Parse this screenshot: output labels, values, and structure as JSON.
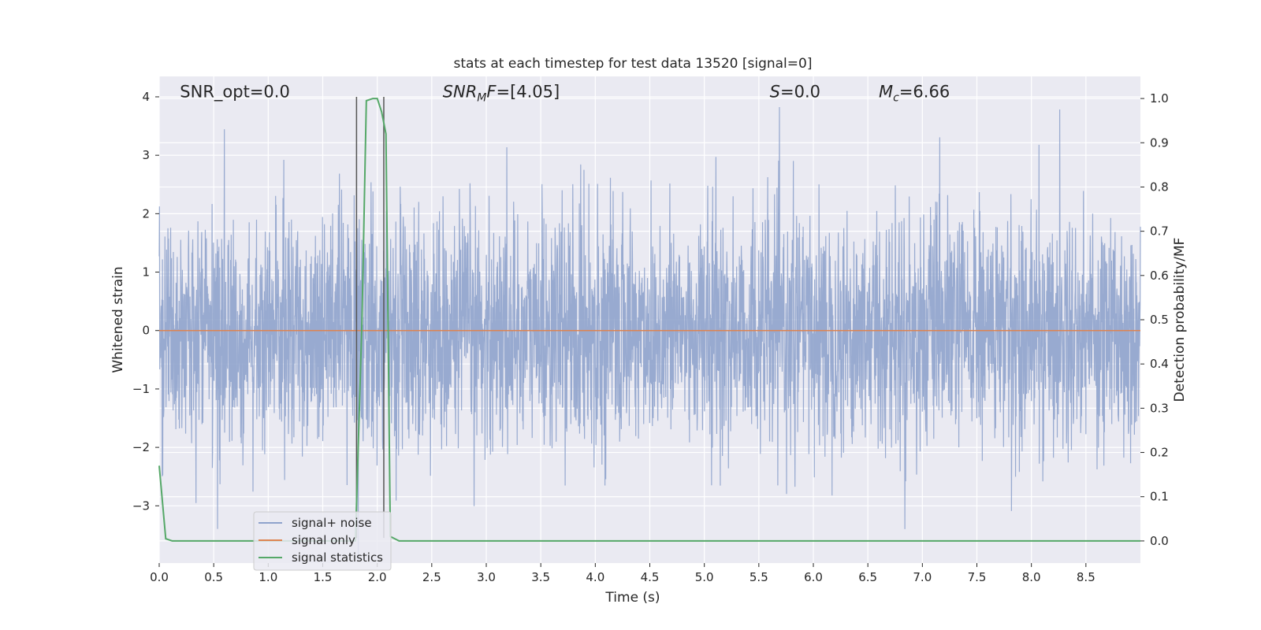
{
  "chart_data": {
    "type": "line",
    "title": "stats at each timestep for test data 13520 [signal=0]",
    "xlabel": "Time (s)",
    "ylabel": "Whitened strain",
    "y2label": "Detection probability/MF",
    "xlim": [
      0.0,
      9.0
    ],
    "ylim": [
      -3.98,
      4.35
    ],
    "y2lim": [
      -0.05,
      1.05
    ],
    "x_ticks": [
      0.0,
      0.5,
      1.0,
      1.5,
      2.0,
      2.5,
      3.0,
      3.5,
      4.0,
      4.5,
      5.0,
      5.5,
      6.0,
      6.5,
      7.0,
      7.5,
      8.0,
      8.5
    ],
    "x_tick_labels": [
      "0.0",
      "0.5",
      "1.0",
      "1.5",
      "2.0",
      "2.5",
      "3.0",
      "3.5",
      "4.0",
      "4.5",
      "5.0",
      "5.5",
      "6.0",
      "6.5",
      "7.0",
      "7.5",
      "8.0",
      "8.5"
    ],
    "y_ticks": [
      4,
      3,
      2,
      1,
      0,
      -1,
      -2,
      -3
    ],
    "y_tick_labels": [
      "4",
      "3",
      "2",
      "1",
      "0",
      "−1",
      "−2",
      "−3"
    ],
    "y2_ticks": [
      1.0,
      0.9,
      0.8,
      0.7,
      0.6,
      0.5,
      0.4,
      0.3,
      0.2,
      0.1,
      0.0
    ],
    "y2_tick_labels": [
      "1.0",
      "0.9",
      "0.8",
      "0.7",
      "0.6",
      "0.5",
      "0.4",
      "0.3",
      "0.2",
      "0.1",
      "0.0"
    ],
    "grid": true,
    "legend_placement": "lower-left",
    "series": [
      {
        "name": "signal+ noise",
        "axis": "left",
        "color": "#8fa3cc",
        "noise_sigma": 1.0,
        "time_range": [
          0.0,
          9.0
        ]
      },
      {
        "name": "signal only",
        "axis": "left",
        "color": "#dd8452",
        "x": [
          0.0,
          9.0
        ],
        "y": [
          0.0,
          0.0
        ]
      },
      {
        "name": "signal statistics",
        "axis": "right",
        "color": "#55a868",
        "x": [
          0.0,
          0.06,
          0.12,
          0.5,
          1.0,
          1.5,
          1.8,
          1.86,
          1.9,
          1.96,
          2.0,
          2.04,
          2.08,
          2.12,
          2.2,
          2.5,
          3.0,
          4.0,
          5.0,
          6.0,
          7.0,
          8.0,
          9.0
        ],
        "y": [
          0.17,
          0.005,
          0.0,
          0.0,
          0.0,
          0.0,
          0.0,
          0.5,
          0.995,
          1.0,
          1.0,
          0.97,
          0.92,
          0.01,
          0.0,
          0.0,
          0.0,
          0.0,
          0.0,
          0.0,
          0.0,
          0.0,
          0.0
        ]
      }
    ],
    "vertical_lines": [
      {
        "x": 1.81,
        "y_range": [
          -3.55,
          4.0
        ],
        "color": "#555555"
      },
      {
        "x": 2.06,
        "y_range": [
          -3.55,
          4.0
        ],
        "color": "#555555"
      }
    ],
    "annotations": [
      {
        "text": "SNR_opt=0.0",
        "x": 0.19,
        "y": 4.1
      },
      {
        "text": "=[4.05]",
        "math_base": "SNR",
        "math_sub": "M",
        "math_after": "F",
        "x": 2.6,
        "y": 4.1
      },
      {
        "text": "=0.0",
        "math_base": "S",
        "x": 5.6,
        "y": 4.1
      },
      {
        "text": "=6.66",
        "math_base": "M",
        "math_sub": "c",
        "x": 6.6,
        "y": 4.1
      }
    ]
  },
  "colors": {
    "plot_background": "#eaeaf2",
    "grid": "#ffffff"
  }
}
